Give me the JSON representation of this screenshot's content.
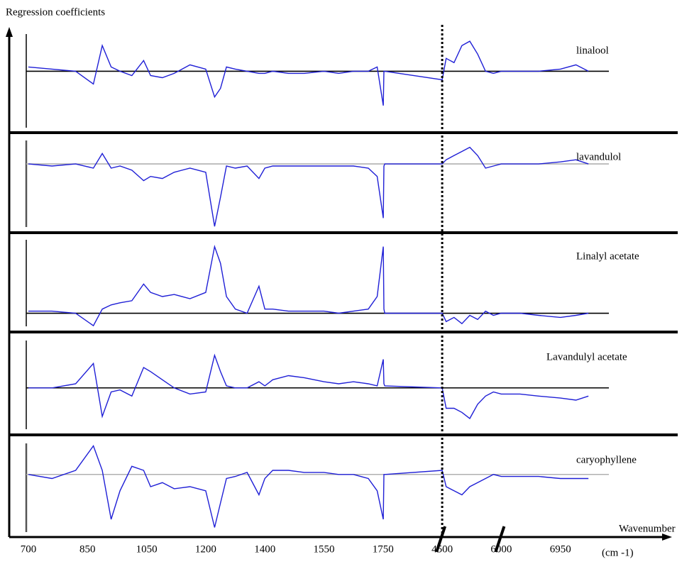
{
  "chart_data": {
    "type": "line",
    "ylabel": "Regression coefficients",
    "xlabel": "Wavenumber",
    "x_unit": "(cm -1)",
    "xticks": [
      700,
      850,
      1050,
      1200,
      1400,
      1550,
      1750,
      4500,
      6000,
      6950
    ],
    "xlim": [
      700,
      7480
    ],
    "axis_breaks": [
      4500,
      6000
    ],
    "dotted_line_x": 4500,
    "x": [
      700,
      760,
      820,
      870,
      900,
      930,
      960,
      1000,
      1040,
      1060,
      1090,
      1120,
      1160,
      1200,
      1230,
      1250,
      1270,
      1300,
      1340,
      1380,
      1400,
      1420,
      1460,
      1500,
      1550,
      1600,
      1650,
      1700,
      1730,
      1760,
      1790,
      1830,
      4500,
      4600,
      4800,
      5000,
      5200,
      5400,
      5600,
      5800,
      6000,
      6300,
      6600,
      6950,
      7200,
      7400
    ],
    "series": [
      {
        "name": "linalool",
        "color": "#1f1fd6",
        "baseline_color": "#000000",
        "ylim": [
          -1.4,
          1.0
        ],
        "values": [
          0.1,
          0.05,
          0.0,
          -0.3,
          0.6,
          0.1,
          0.0,
          -0.1,
          0.25,
          -0.1,
          -0.15,
          -0.05,
          0.15,
          0.05,
          -0.6,
          -0.4,
          0.1,
          0.05,
          0.0,
          -0.05,
          -0.05,
          0.0,
          -0.05,
          -0.05,
          0.0,
          -0.05,
          0.0,
          0.0,
          0.1,
          -0.8,
          0.0,
          0.0,
          -0.2,
          0.3,
          0.2,
          0.6,
          0.7,
          0.4,
          0.0,
          -0.05,
          0.0,
          0.0,
          0.0,
          0.05,
          0.15,
          0.0
        ]
      },
      {
        "name": "lavandulol",
        "color": "#1f1fd6",
        "baseline_color": "#b0b0b0",
        "ylim": [
          -1.6,
          0.7
        ],
        "values": [
          0.0,
          -0.05,
          0.0,
          -0.1,
          0.25,
          -0.1,
          -0.05,
          -0.15,
          -0.4,
          -0.3,
          -0.35,
          -0.2,
          -0.1,
          -0.2,
          -1.5,
          -0.8,
          -0.05,
          -0.1,
          -0.05,
          -0.35,
          -0.1,
          -0.05,
          -0.05,
          -0.05,
          -0.05,
          -0.05,
          -0.05,
          -0.1,
          -0.3,
          -1.3,
          -0.05,
          0.0,
          0.0,
          0.1,
          0.2,
          0.3,
          0.4,
          0.2,
          -0.1,
          -0.05,
          0.0,
          0.0,
          0.0,
          0.05,
          0.1,
          0.0
        ]
      },
      {
        "name": "Linalyl acetate",
        "color": "#1f1fd6",
        "baseline_color": "#000000",
        "ylim": [
          -0.4,
          1.9
        ],
        "values": [
          0.05,
          0.05,
          0.0,
          -0.3,
          0.1,
          0.2,
          0.25,
          0.3,
          0.7,
          0.5,
          0.4,
          0.45,
          0.35,
          0.5,
          1.6,
          1.2,
          0.4,
          0.1,
          0.0,
          0.65,
          0.1,
          0.1,
          0.05,
          0.05,
          0.05,
          0.0,
          0.05,
          0.1,
          0.4,
          1.6,
          0.1,
          0.0,
          0.0,
          -0.2,
          -0.1,
          -0.25,
          -0.05,
          -0.15,
          0.05,
          -0.05,
          0.0,
          0.0,
          -0.05,
          -0.1,
          -0.05,
          0.0
        ]
      },
      {
        "name": "Lavandulyl acetate",
        "color": "#1f1fd6",
        "baseline_color": "#000000",
        "ylim": [
          -1.1,
          1.3
        ],
        "values": [
          0.0,
          0.0,
          0.1,
          0.6,
          -0.7,
          -0.1,
          -0.05,
          -0.2,
          0.5,
          0.4,
          0.2,
          0.0,
          -0.15,
          -0.1,
          0.8,
          0.4,
          0.05,
          0.0,
          0.0,
          0.15,
          0.05,
          0.2,
          0.3,
          0.25,
          0.15,
          0.1,
          0.15,
          0.1,
          0.05,
          0.7,
          0.1,
          0.05,
          0.0,
          -0.5,
          -0.5,
          -0.6,
          -0.75,
          -0.4,
          -0.2,
          -0.1,
          -0.15,
          -0.15,
          -0.2,
          -0.25,
          -0.3,
          -0.2
        ]
      },
      {
        "name": "caryophyllene",
        "color": "#1f1fd6",
        "baseline_color": "#b0b0b0",
        "ylim": [
          -1.5,
          0.9
        ],
        "values": [
          0.0,
          -0.1,
          0.1,
          0.7,
          0.1,
          -1.1,
          -0.4,
          0.2,
          0.1,
          -0.3,
          -0.2,
          -0.35,
          -0.3,
          -0.4,
          -1.3,
          -0.7,
          -0.1,
          -0.05,
          0.05,
          -0.5,
          -0.1,
          0.1,
          0.1,
          0.05,
          0.05,
          0.0,
          0.0,
          -0.1,
          -0.4,
          -1.1,
          0.0,
          0.0,
          0.1,
          -0.3,
          -0.4,
          -0.5,
          -0.3,
          -0.2,
          -0.1,
          0.0,
          -0.05,
          -0.05,
          -0.05,
          -0.1,
          -0.1,
          -0.1
        ]
      }
    ]
  }
}
